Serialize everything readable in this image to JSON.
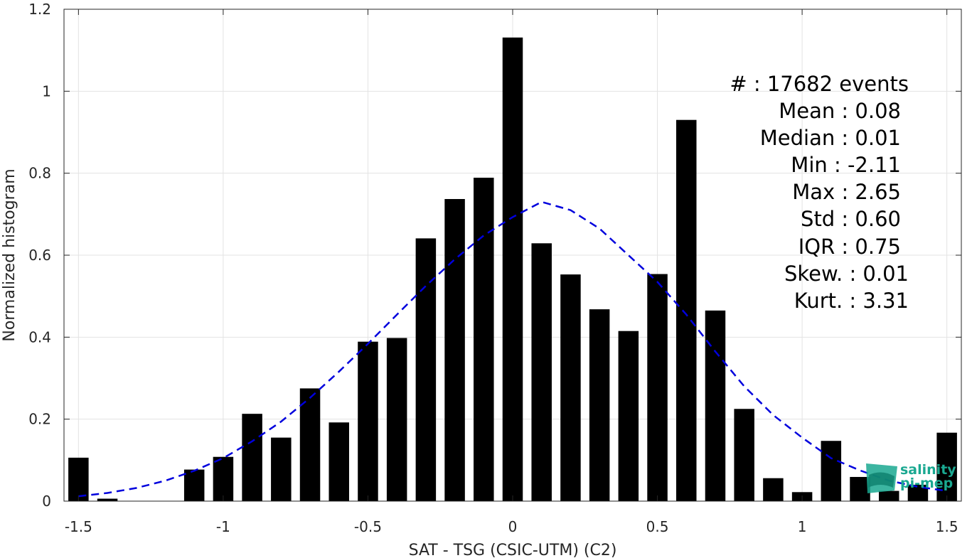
{
  "chart_data": {
    "type": "bar",
    "xlabel": "SAT - TSG (CSIC-UTM) (C2)",
    "ylabel": "Normalized histogram",
    "xlim": [
      -1.55,
      1.55
    ],
    "ylim": [
      0,
      1.2
    ],
    "xticks": [
      -1.5,
      -1,
      -0.5,
      0,
      0.5,
      1,
      1.5
    ],
    "xtick_labels": [
      "-1.5",
      "-1",
      "-0.5",
      "0",
      "0.5",
      "1",
      "1.5"
    ],
    "yticks": [
      0,
      0.2,
      0.4,
      0.6,
      0.8,
      1,
      1.2
    ],
    "ytick_labels": [
      "0",
      "0.2",
      "0.4",
      "0.6",
      "0.8",
      "1",
      "1.2"
    ],
    "grid": true,
    "bar_color": "#000000",
    "fit_color": "#0000dd",
    "bars": {
      "x": [
        -1.5,
        -1.4,
        -1.3,
        -1.2,
        -1.1,
        -1.0,
        -0.9,
        -0.8,
        -0.7,
        -0.6,
        -0.5,
        -0.4,
        -0.3,
        -0.2,
        -0.1,
        0.0,
        0.1,
        0.2,
        0.3,
        0.4,
        0.5,
        0.6,
        0.7,
        0.8,
        0.9,
        1.0,
        1.1,
        1.2,
        1.3,
        1.4,
        1.5
      ],
      "values": [
        0.106,
        0.006,
        0.0,
        0.0,
        0.077,
        0.108,
        0.213,
        0.155,
        0.275,
        0.192,
        0.389,
        0.398,
        0.641,
        0.737,
        0.789,
        1.131,
        0.629,
        0.553,
        0.468,
        0.415,
        0.554,
        0.93,
        0.465,
        0.225,
        0.056,
        0.022,
        0.147,
        0.059,
        0.025,
        0.04,
        0.167
      ]
    },
    "fit": {
      "style": "dashed",
      "x": [
        -1.5,
        -1.4,
        -1.3,
        -1.2,
        -1.1,
        -1.0,
        -0.9,
        -0.8,
        -0.7,
        -0.6,
        -0.5,
        -0.4,
        -0.3,
        -0.2,
        -0.1,
        0.0,
        0.1,
        0.2,
        0.3,
        0.4,
        0.5,
        0.6,
        0.7,
        0.8,
        0.9,
        1.0,
        1.1,
        1.2,
        1.3,
        1.4,
        1.5
      ],
      "y": [
        0.012,
        0.02,
        0.032,
        0.05,
        0.074,
        0.105,
        0.146,
        0.194,
        0.252,
        0.316,
        0.384,
        0.455,
        0.525,
        0.59,
        0.648,
        0.693,
        0.73,
        0.71,
        0.665,
        0.6,
        0.535,
        0.455,
        0.365,
        0.28,
        0.21,
        0.155,
        0.105,
        0.075,
        0.05,
        0.035,
        0.025
      ]
    }
  },
  "stats": [
    {
      "label": "#  : 17682 events"
    },
    {
      "label": "Mean : 0.08"
    },
    {
      "label": "Median : 0.01"
    },
    {
      "label": "Min : -2.11"
    },
    {
      "label": "Max : 2.65"
    },
    {
      "label": "Std : 0.60"
    },
    {
      "label": "IQR : 0.75"
    },
    {
      "label": "Skew. : 0.01"
    },
    {
      "label": "Kurt. : 3.31"
    }
  ],
  "logo": {
    "line1": "salinity",
    "line2": "pi-mep",
    "color": "#1aa891"
  }
}
